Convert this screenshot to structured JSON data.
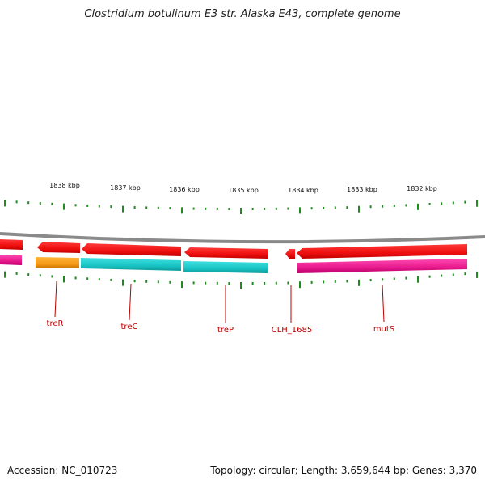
{
  "title": "Clostridium botulinum E3 str. Alaska E43, complete genome",
  "footer": {
    "accession": "Accession: NC_010723",
    "summary": "Topology: circular; Length: 3,659,644 bp; Genes: 3,370"
  },
  "scale_labels": [
    "1838 kbp",
    "1837 kbp",
    "1836 kbp",
    "1835 kbp",
    "1834 kbp",
    "1833 kbp",
    "1832 kbp"
  ],
  "gene_labels": [
    "treR",
    "treC",
    "treP",
    "CLH_1685",
    "mutS"
  ],
  "colors": {
    "gene_red": "#ee1111",
    "cds_cyan": "#19c4c4",
    "cds_orange": "#f59a17",
    "cds_pink": "#e8198c",
    "tick_green": "#1f8a1f",
    "backbone": "#888888",
    "label_red": "#bb0000"
  }
}
